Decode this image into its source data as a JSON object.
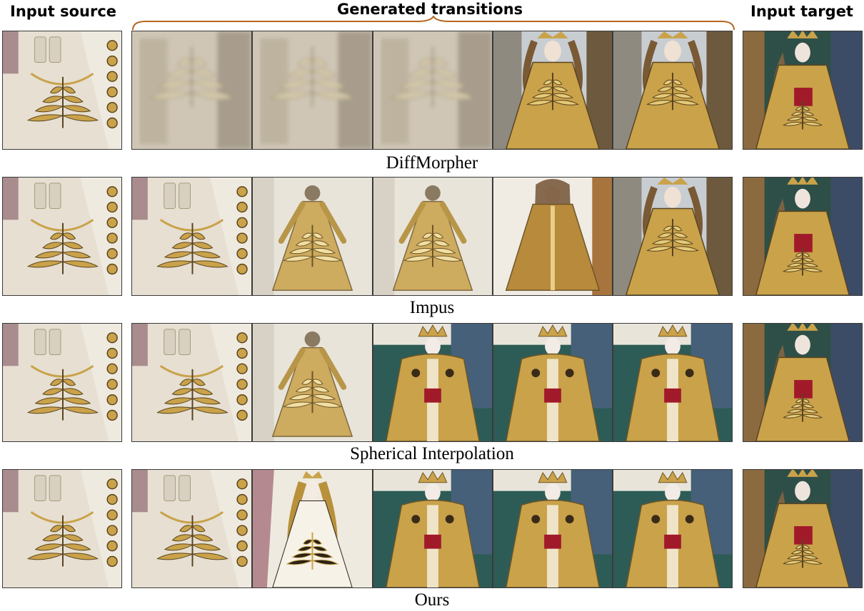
{
  "headers": {
    "source": "Input source",
    "generated": "Generated transitions",
    "target": "Input target"
  },
  "colors": {
    "brace": "#b5651d",
    "fabric": "#e6dfd2",
    "gold": "#c9a24a",
    "crimson": "#a11a2a"
  },
  "rows": [
    {
      "caption": "DiffMorpher",
      "frames": [
        "blur",
        "blur",
        "blur",
        "statue",
        "statue"
      ]
    },
    {
      "caption": "Impus",
      "frames": [
        "fabric",
        "gown",
        "gown",
        "robe",
        "statue"
      ]
    },
    {
      "caption": "Spherical Interpolation",
      "frames": [
        "fabric",
        "gown",
        "saint",
        "saint",
        "saint"
      ]
    },
    {
      "caption": "Ours",
      "frames": [
        "fabric",
        "queen",
        "saint",
        "saint",
        "saint"
      ]
    }
  ]
}
